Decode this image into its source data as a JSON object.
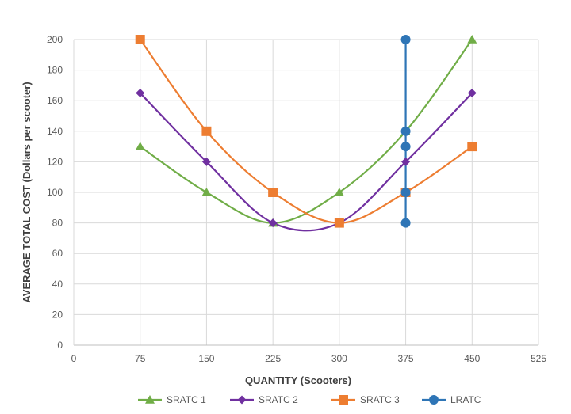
{
  "chart_data": {
    "type": "line",
    "title": "",
    "xlabel": "QUANTITY (Scooters)",
    "ylabel": "AVERAGE TOTAL COST (Dollars per scooter)",
    "xlim": [
      0,
      525
    ],
    "ylim": [
      0,
      200
    ],
    "x_ticks": [
      0,
      75,
      150,
      225,
      300,
      375,
      450,
      525
    ],
    "y_ticks": [
      0,
      20,
      40,
      60,
      80,
      100,
      120,
      140,
      160,
      180,
      200
    ],
    "grid": "vertical and horizontal",
    "legend_position": "bottom",
    "series": [
      {
        "name": "SRATC 1",
        "color": "#70AD47",
        "marker": "triangle",
        "smooth": true,
        "x": [
          75,
          150,
          225,
          300,
          375,
          450
        ],
        "y": [
          130,
          100,
          80,
          100,
          140,
          200
        ]
      },
      {
        "name": "SRATC 2",
        "color": "#7030A0",
        "marker": "diamond",
        "smooth": true,
        "x": [
          75,
          150,
          225,
          300,
          375,
          450
        ],
        "y": [
          165,
          120,
          80,
          80,
          120,
          165
        ]
      },
      {
        "name": "SRATC 3",
        "color": "#ED7D31",
        "marker": "square",
        "smooth": true,
        "x": [
          75,
          150,
          225,
          300,
          375,
          450
        ],
        "y": [
          200,
          140,
          100,
          80,
          100,
          130
        ]
      },
      {
        "name": "LRATC",
        "color": "#2E75B6",
        "marker": "circle",
        "smooth": false,
        "x": [
          375,
          375,
          375,
          375,
          375
        ],
        "y": [
          80,
          100,
          130,
          140,
          200
        ]
      }
    ]
  }
}
